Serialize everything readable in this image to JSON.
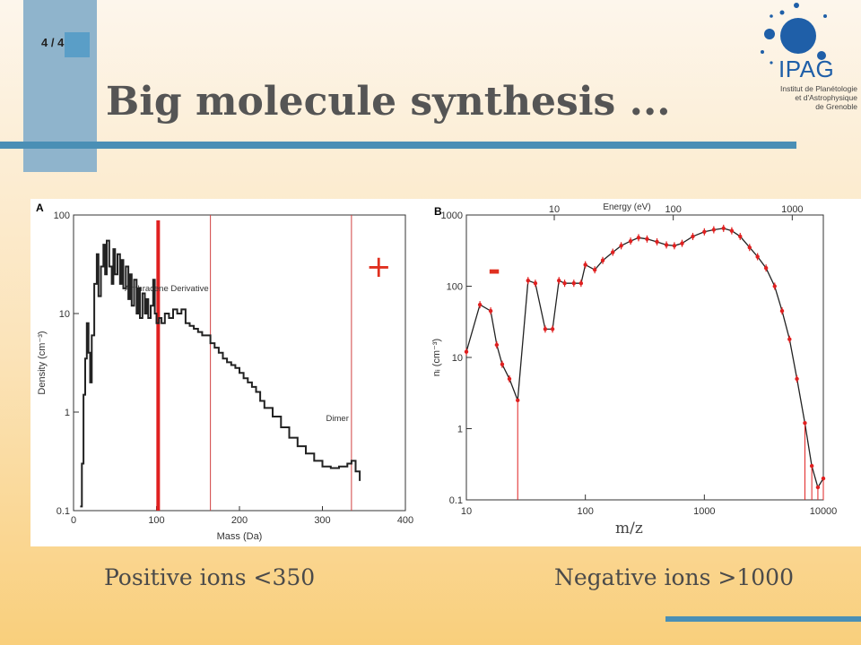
{
  "slide": {
    "number": "4 / 4",
    "title": "Big molecule synthesis ..."
  },
  "logo": {
    "name": "IPAG",
    "subtitle": [
      "Institut de Planétologie",
      "et d'Astrophysique",
      "de Grenoble"
    ]
  },
  "captions": {
    "left": "Positive ions <350",
    "right": "Negative ions >1000",
    "mz": "m/z"
  },
  "colors": {
    "accent_blue": "#4a8fb5",
    "marker_red": "#e02020",
    "annot_red": "#e03020"
  },
  "chart_data": [
    {
      "type": "line",
      "panel_label": "A",
      "xlabel": "Mass (Da)",
      "ylabel": "Density (cm⁻³)",
      "xlim": [
        0,
        400
      ],
      "ylim": [
        0.1,
        100
      ],
      "yscale": "log",
      "xticks": [
        "0",
        "100",
        "200",
        "300",
        "400"
      ],
      "yticks": [
        "0.1",
        "1",
        "10",
        "100"
      ],
      "sign": "+",
      "annotations": [
        {
          "text": "Anthracene Derivative",
          "x": 165
        },
        {
          "text": "Dimer",
          "x": 335
        }
      ],
      "vlines": [
        {
          "x": 102,
          "style": "thick"
        },
        {
          "x": 165,
          "style": "thin"
        },
        {
          "x": 335,
          "style": "thin"
        }
      ],
      "series": [
        {
          "x": [
            8,
            10,
            12,
            14,
            16,
            18,
            20,
            22,
            25,
            28,
            30,
            33,
            36,
            38,
            40,
            43,
            46,
            48,
            50,
            53,
            56,
            58,
            60,
            63,
            66,
            68,
            70,
            73,
            76,
            78,
            80,
            83,
            86,
            88,
            90,
            93,
            96,
            98,
            100,
            103,
            106,
            110,
            115,
            120,
            125,
            130,
            135,
            140,
            145,
            150,
            155,
            160,
            165,
            170,
            175,
            180,
            185,
            190,
            195,
            200,
            205,
            210,
            215,
            220,
            225,
            230,
            240,
            250,
            260,
            270,
            280,
            290,
            300,
            310,
            320,
            330,
            335,
            340,
            345
          ],
          "y": [
            0.11,
            0.3,
            1.5,
            3.5,
            8,
            4,
            2,
            6,
            20,
            40,
            15,
            30,
            50,
            25,
            55,
            30,
            20,
            45,
            25,
            40,
            20,
            35,
            18,
            30,
            14,
            25,
            12,
            22,
            10,
            18,
            9,
            16,
            10,
            14,
            9,
            12,
            22,
            10,
            8,
            9,
            8,
            10,
            9,
            11,
            10,
            11,
            8,
            7.5,
            7,
            6.5,
            6,
            6,
            5,
            4.5,
            4,
            3.5,
            3.2,
            3,
            2.8,
            2.5,
            2.2,
            2,
            1.8,
            1.6,
            1.3,
            1.1,
            0.9,
            0.7,
            0.55,
            0.45,
            0.38,
            0.32,
            0.28,
            0.27,
            0.28,
            0.3,
            0.32,
            0.25,
            0.2
          ]
        }
      ]
    },
    {
      "type": "line",
      "panel_label": "B",
      "xlabel": "",
      "top_xlabel": "Energy (eV)",
      "ylabel": "nᵢ (cm⁻³)",
      "xlim": [
        10,
        10000
      ],
      "ylim": [
        0.1,
        1000
      ],
      "xscale": "log",
      "yscale": "log",
      "xticks": [
        "10",
        "100",
        "1000",
        "10000"
      ],
      "top_xticks": [
        "10",
        "100",
        "1000"
      ],
      "yticks": [
        "0.1",
        "1",
        "10",
        "100",
        "1000"
      ],
      "sign": "-",
      "series": [
        {
          "x": [
            10,
            13,
            16,
            18,
            20,
            23,
            27,
            33,
            38,
            46,
            53,
            60,
            67,
            80,
            92,
            100,
            120,
            140,
            170,
            200,
            240,
            280,
            330,
            400,
            480,
            560,
            650,
            800,
            1000,
            1200,
            1450,
            1700,
            2000,
            2400,
            2800,
            3300,
            3900,
            4500,
            5200,
            6000,
            7000,
            8000,
            9000,
            10000
          ],
          "y": [
            12,
            55,
            45,
            15,
            8,
            5,
            2.5,
            120,
            110,
            25,
            25,
            120,
            110,
            110,
            110,
            200,
            170,
            230,
            300,
            370,
            430,
            480,
            460,
            420,
            380,
            370,
            400,
            500,
            580,
            620,
            650,
            600,
            500,
            350,
            260,
            180,
            100,
            45,
            18,
            5,
            1.2,
            0.3,
            0.15,
            0.2
          ]
        }
      ]
    }
  ]
}
